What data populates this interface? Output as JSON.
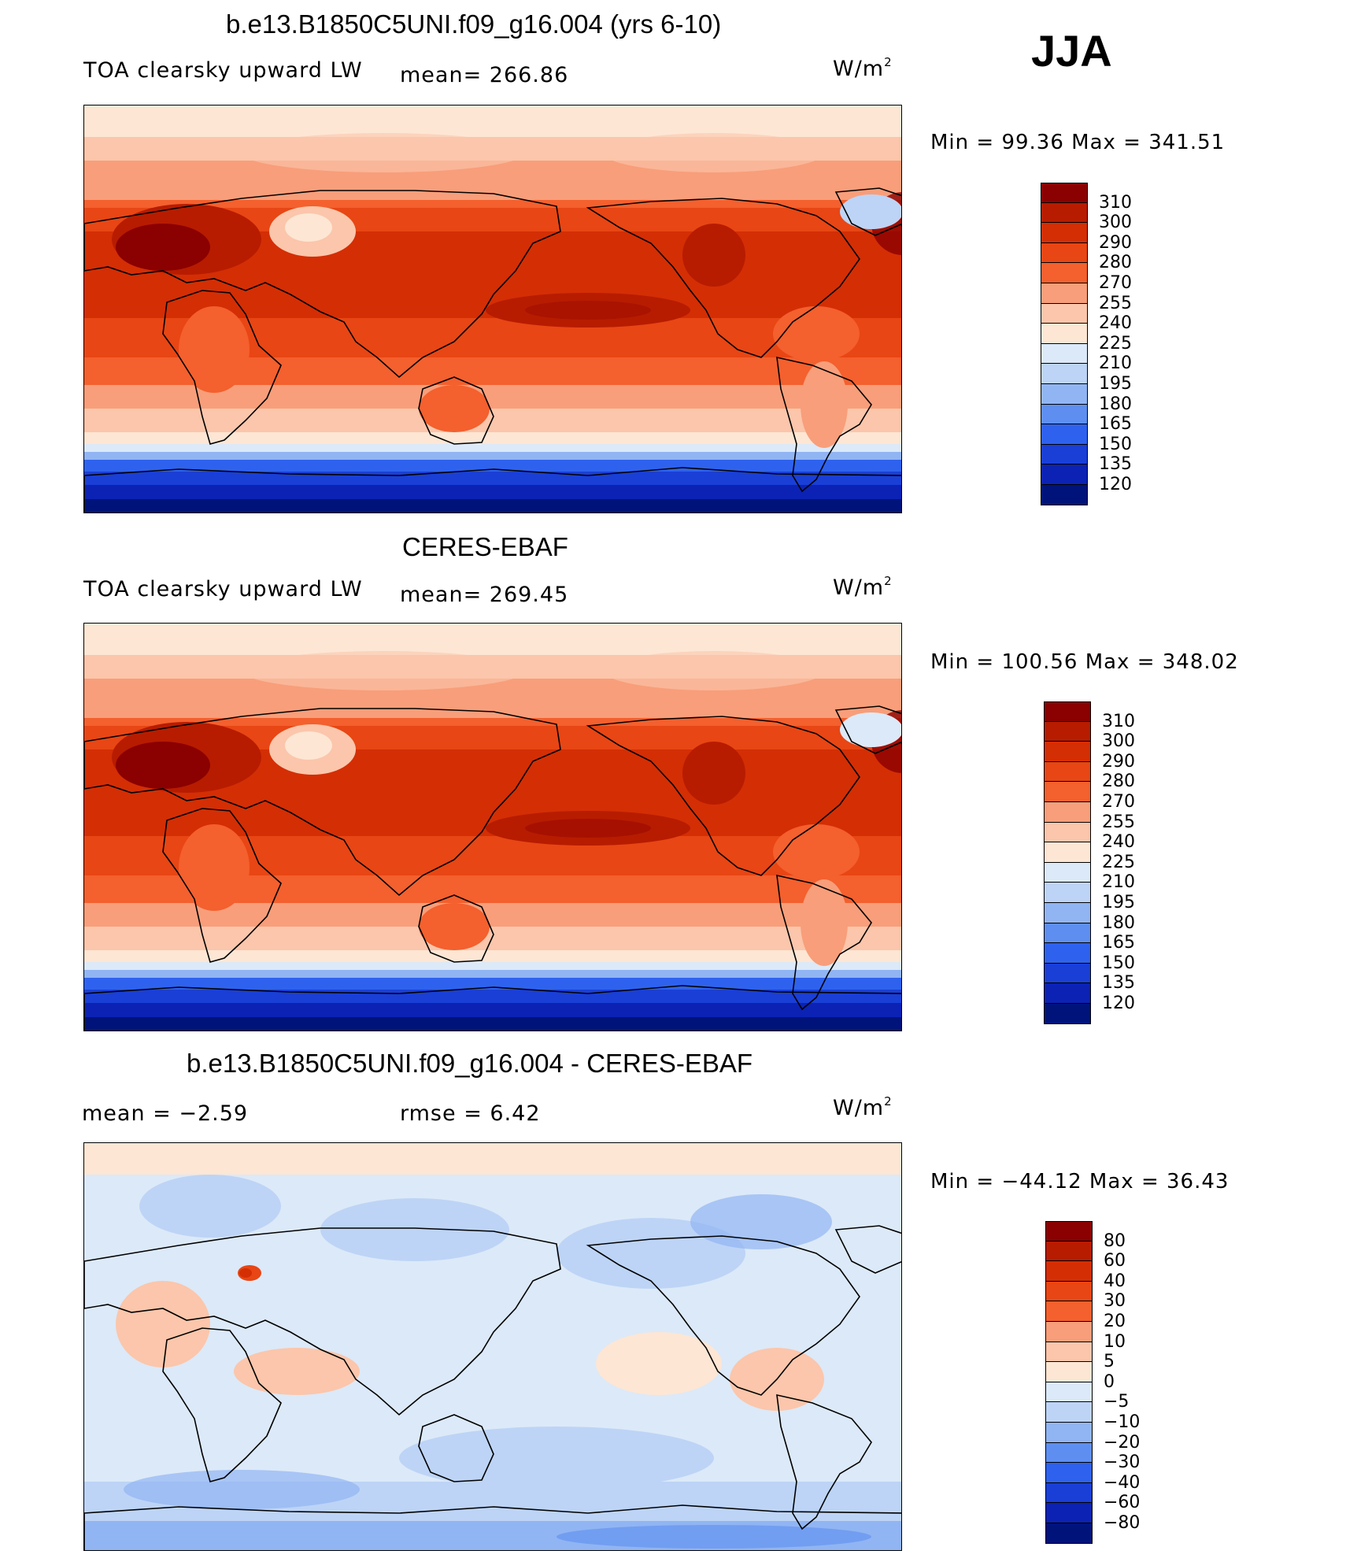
{
  "season": "JJA",
  "panels": [
    {
      "title": "b.e13.B1850C5UNI.f09_g16.004 (yrs 6-10)",
      "field": "TOA clearsky upward LW",
      "stat1": "mean= 266.86",
      "stat2": "",
      "units": "W/m",
      "units_sup": "2",
      "minmax": "Min =   99.36 Max = 341.51",
      "kind": "model",
      "colorbar": {
        "labels": [
          "310",
          "300",
          "290",
          "280",
          "270",
          "255",
          "240",
          "225",
          "210",
          "195",
          "180",
          "165",
          "150",
          "135",
          "120"
        ],
        "colors": [
          "#8B0000",
          "#B71C00",
          "#D42E05",
          "#E84614",
          "#F4602E",
          "#F89E7A",
          "#FBC6AB",
          "#FDE6D4",
          "#DCE9F8",
          "#BDD4F6",
          "#91B5F3",
          "#5E8FF0",
          "#2E62EE",
          "#1A3FD6",
          "#0B22B4",
          "#00137A"
        ]
      }
    },
    {
      "title": "CERES-EBAF",
      "field": "TOA clearsky upward LW",
      "stat1": "mean= 269.45",
      "stat2": "",
      "units": "W/m",
      "units_sup": "2",
      "minmax": "Min = 100.56 Max = 348.02",
      "kind": "obs",
      "colorbar": {
        "labels": [
          "310",
          "300",
          "290",
          "280",
          "270",
          "255",
          "240",
          "225",
          "210",
          "195",
          "180",
          "165",
          "150",
          "135",
          "120"
        ],
        "colors": [
          "#8B0000",
          "#B71C00",
          "#D42E05",
          "#E84614",
          "#F4602E",
          "#F89E7A",
          "#FBC6AB",
          "#FDE6D4",
          "#DCE9F8",
          "#BDD4F6",
          "#91B5F3",
          "#5E8FF0",
          "#2E62EE",
          "#1A3FD6",
          "#0B22B4",
          "#00137A"
        ]
      }
    },
    {
      "title": "b.e13.B1850C5UNI.f09_g16.004 - CERES-EBAF",
      "field": "",
      "stat1": "mean =   −2.59",
      "stat2": "rmse =    6.42",
      "units": "W/m",
      "units_sup": "2",
      "minmax": "Min = −44.12 Max =  36.43",
      "kind": "diff",
      "colorbar": {
        "labels": [
          "80",
          "60",
          "40",
          "30",
          "20",
          "10",
          "5",
          "0",
          "−5",
          "−10",
          "−20",
          "−30",
          "−40",
          "−60",
          "−80"
        ],
        "colors": [
          "#8B0000",
          "#B71C00",
          "#D42E05",
          "#E84614",
          "#F4602E",
          "#F89E7A",
          "#FBC6AB",
          "#FDE6D4",
          "#DCE9F8",
          "#BDD4F6",
          "#91B5F3",
          "#5E8FF0",
          "#2E62EE",
          "#1A3FD6",
          "#0B22B4",
          "#00137A"
        ]
      }
    }
  ]
}
